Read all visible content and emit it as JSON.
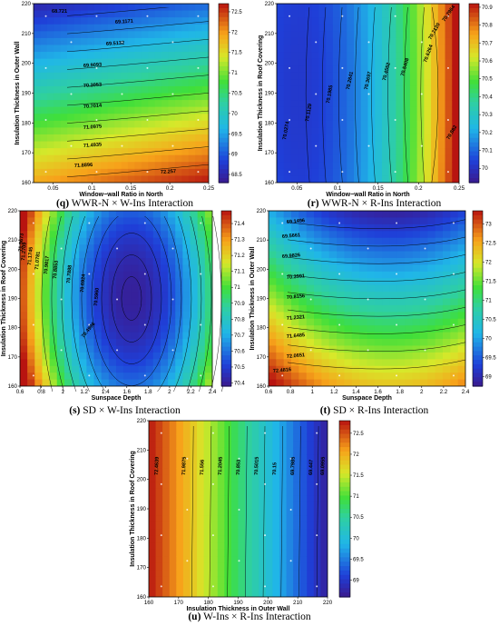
{
  "chart_data": [
    {
      "id": "q",
      "type": "heatmap",
      "caption_label": "(q)",
      "caption_text": "WWR-N × W-Ins Interaction",
      "xlabel": "Window−wall Ratio in North",
      "ylabel": "Insulation Thickness in Outer Wall",
      "xlim": [
        0.025,
        0.25
      ],
      "ylim": [
        160,
        220
      ],
      "xticks": [
        "0.05",
        "0.1",
        "0.15",
        "0.2",
        "0.25"
      ],
      "yticks": [
        "160",
        "170",
        "180",
        "190",
        "200",
        "210",
        "220"
      ],
      "colorbar": {
        "min": 68.3,
        "max": 72.7,
        "ticks": [
          "68.5",
          "69",
          "69.5",
          "70",
          "70.5",
          "71",
          "71.5",
          "72",
          "72.5"
        ]
      },
      "contour_labels": [
        "68.721",
        "69.1171",
        "69.5132",
        "69.9093",
        "70.3053",
        "70.7014",
        "71.0975",
        "71.4935",
        "71.8896",
        "72.257"
      ]
    },
    {
      "id": "r",
      "type": "heatmap",
      "caption_label": "(r)",
      "caption_text": "WWR-N × R-Ins Interaction",
      "xlabel": "Window−wall Ratio in North",
      "ylabel": "Insulation Thickness in Roof Covering",
      "xlim": [
        0.025,
        0.25
      ],
      "ylim": [
        160,
        220
      ],
      "xticks": [
        "0.05",
        "0.1",
        "0.15",
        "0.2",
        "0.25"
      ],
      "yticks": [
        "160",
        "170",
        "180",
        "190",
        "200",
        "210",
        "220"
      ],
      "colorbar": {
        "min": 69.92,
        "max": 70.92,
        "ticks": [
          "70",
          "70.1",
          "70.2",
          "70.3",
          "70.4",
          "70.5",
          "70.6",
          "70.7",
          "70.8",
          "70.9"
        ]
      },
      "contour_labels": [
        "70.0274",
        "70.1129",
        "70.1985",
        "70.2841",
        "70.3697",
        "70.4552",
        "70.5408",
        "70.6264",
        "70.7120",
        "70.7964",
        "70.882"
      ]
    },
    {
      "id": "s",
      "type": "heatmap",
      "caption_label": "(s)",
      "caption_text": "SD × W-Ins Interaction",
      "xlabel": "Sunspace Depth",
      "ylabel": "Insulation Thickness in Roof Covering",
      "xlim": [
        0.6,
        2.4
      ],
      "ylim": [
        160,
        220
      ],
      "xticks": [
        "0.6",
        "0.8",
        "1",
        "1.2",
        "1.4",
        "1.6",
        "1.8",
        "2",
        "2.2",
        "2.4"
      ],
      "yticks": [
        "160",
        "170",
        "180",
        "190",
        "200",
        "210",
        "220"
      ],
      "colorbar": {
        "min": 70.38,
        "max": 71.48,
        "ticks": [
          "70.4",
          "70.5",
          "70.6",
          "70.7",
          "70.8",
          "70.9",
          "71",
          "71.1",
          "71.2",
          "71.3",
          "71.4"
        ]
      },
      "contour_labels": [
        "70.4996",
        "70.5960",
        "70.6924",
        "70.7888",
        "70.8853",
        "70.9817",
        "71.0781",
        "71.1745",
        "71.2709",
        "71.3673"
      ]
    },
    {
      "id": "t",
      "type": "heatmap",
      "caption_label": "(t)",
      "caption_text": "SD × R-Ins Interaction",
      "xlabel": "Sunspace Depth",
      "ylabel": "Insulation Thickness in Outer Wall",
      "xlim": [
        0.6,
        2.4
      ],
      "ylim": [
        160,
        220
      ],
      "xticks": [
        "0.6",
        "0.8",
        "1",
        "1.2",
        "1.4",
        "1.6",
        "1.8",
        "2",
        "2.2",
        "2.4"
      ],
      "yticks": [
        "160",
        "170",
        "180",
        "190",
        "200",
        "210",
        "220"
      ],
      "colorbar": {
        "min": 68.75,
        "max": 73.35,
        "ticks": [
          "69",
          "69.5",
          "70",
          "70.5",
          "71",
          "71.5",
          "72",
          "72.5",
          "73"
        ]
      },
      "contour_labels": [
        "69.1496",
        "69.5661",
        "69.9826",
        "70.3991",
        "70.8156",
        "71.2321",
        "71.6485",
        "72.0651",
        "72.4816"
      ]
    },
    {
      "id": "u",
      "type": "heatmap",
      "caption_label": "(u)",
      "caption_text": "W-Ins × R-Ins Interaction",
      "xlabel": "Insulation Thickness in Outer Wall",
      "ylabel": "Insulation Thickness in Roof Covering",
      "xlim": [
        160,
        220
      ],
      "ylim": [
        160,
        220
      ],
      "xticks": [
        "160",
        "170",
        "180",
        "190",
        "200",
        "210",
        "220"
      ],
      "yticks": [
        "160",
        "170",
        "180",
        "190",
        "200",
        "210",
        "220"
      ],
      "colorbar": {
        "min": 68.6,
        "max": 72.8,
        "ticks": [
          "69",
          "69.5",
          "70",
          "70.5",
          "71",
          "71.5",
          "72",
          "72.5"
        ]
      },
      "contour_labels": [
        "72.4639",
        "71.9875",
        "71.556",
        "71.2045",
        "70.853",
        "70.5015",
        "70.15",
        "69.7985",
        "69.447",
        "69.0955"
      ]
    }
  ]
}
